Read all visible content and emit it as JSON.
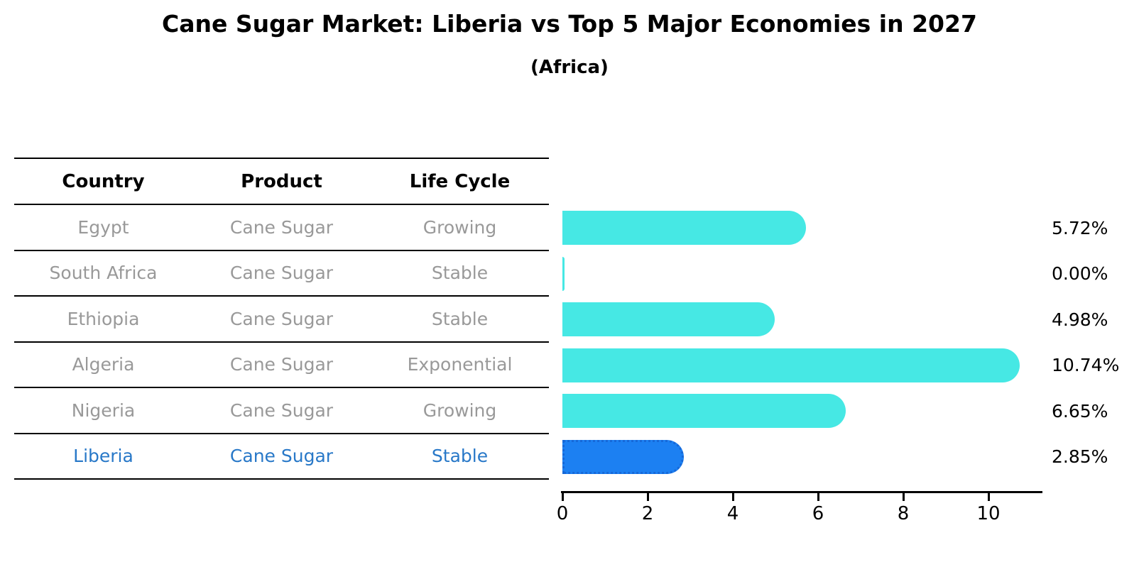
{
  "title": "Cane Sugar Market: Liberia vs Top 5 Major Economies in 2027",
  "subtitle": "(Africa)",
  "table": {
    "headers": [
      "Country",
      "Product",
      "Life Cycle"
    ],
    "rows": [
      {
        "country": "Egypt",
        "product": "Cane Sugar",
        "life_cycle": "Growing"
      },
      {
        "country": "South Africa",
        "product": "Cane Sugar",
        "life_cycle": "Stable"
      },
      {
        "country": "Ethiopia",
        "product": "Cane Sugar",
        "life_cycle": "Stable"
      },
      {
        "country": "Algeria",
        "product": "Cane Sugar",
        "life_cycle": "Exponential"
      },
      {
        "country": "Nigeria",
        "product": "Cane Sugar",
        "life_cycle": "Growing"
      },
      {
        "country": "Liberia",
        "product": "Cane Sugar",
        "life_cycle": "Stable"
      }
    ]
  },
  "chart_data": {
    "type": "bar",
    "orientation": "horizontal",
    "title": "Cane Sugar Market: Liberia vs Top 5 Major Economies in 2027",
    "subtitle": "(Africa)",
    "categories": [
      "Egypt",
      "South Africa",
      "Ethiopia",
      "Algeria",
      "Nigeria",
      "Liberia"
    ],
    "values": [
      5.72,
      0.0,
      4.98,
      10.74,
      6.65,
      2.85
    ],
    "value_labels": [
      "5.72%",
      "0.00%",
      "4.98%",
      "10.74%",
      "6.65%",
      "2.85%"
    ],
    "xlabel": "",
    "ylabel": "",
    "xlim": [
      0,
      11.3
    ],
    "x_ticks": [
      0,
      2,
      4,
      6,
      8,
      10
    ],
    "grid": false,
    "legend": "none",
    "highlight_index": 5,
    "bar_color": "#46E8E4",
    "highlight_color": "#1C80F2",
    "highlight_border": "#1668D8"
  },
  "colors": {
    "bar_cyan": "#46E8E4",
    "bar_blue": "#1C80F2",
    "highlight_text": "#2878C8",
    "table_text": "#999999",
    "heading_text": "#000000",
    "axis_line": "#000000"
  }
}
